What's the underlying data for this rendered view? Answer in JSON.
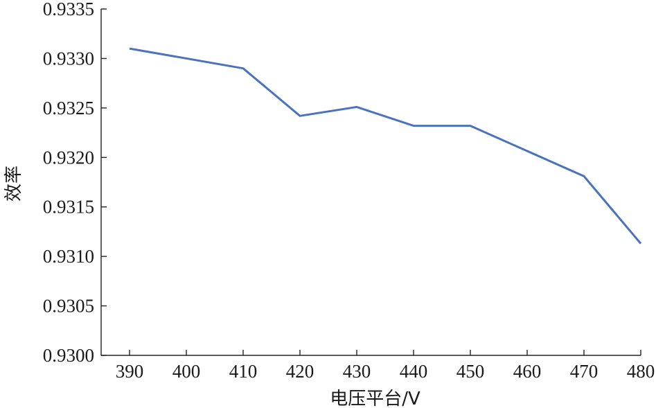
{
  "chart_data": {
    "type": "line",
    "title": "",
    "xlabel": "电压平台/V",
    "ylabel": "效率",
    "x": [
      390,
      400,
      410,
      420,
      430,
      440,
      450,
      460,
      470,
      480
    ],
    "x_tick_labels": [
      "390",
      "400",
      "410",
      "420",
      "430",
      "440",
      "450",
      "460",
      "470",
      "480"
    ],
    "y_tick_labels": [
      "0.9300",
      "0.9305",
      "0.9310",
      "0.9315",
      "0.9320",
      "0.9325",
      "0.9330",
      "0.9335"
    ],
    "y_ticks": [
      0.93,
      0.9305,
      0.931,
      0.9315,
      0.932,
      0.9325,
      0.933,
      0.9335
    ],
    "ylim": [
      0.93,
      0.9335
    ],
    "xlim": [
      385,
      480
    ],
    "grid": false,
    "legend": "none",
    "series": [
      {
        "x": [
          390,
          410,
          420,
          430,
          440,
          450,
          470,
          480
        ],
        "values": [
          0.9331,
          0.9329,
          0.93242,
          0.93251,
          0.93232,
          0.93232,
          0.93181,
          0.93113
        ],
        "color": "#4a72bf"
      }
    ]
  }
}
